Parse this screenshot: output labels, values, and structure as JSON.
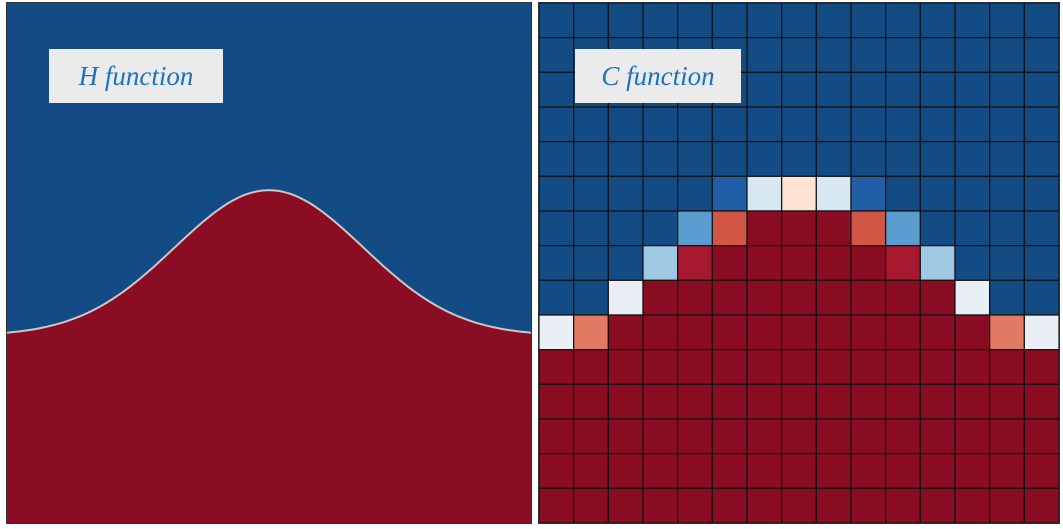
{
  "panels": {
    "h": {
      "label": "H function"
    },
    "c": {
      "label": "C function"
    }
  },
  "colors": {
    "blue": "#134b85",
    "red": "#8b0d23",
    "interface": "#c8c8c8",
    "grid_line": "#111111",
    "label_bg": "#ebebeb",
    "label_text": "#1a72c0"
  },
  "h_function": {
    "type": "gaussian_interface",
    "baseline_fraction_from_bottom": 0.36,
    "peak_fraction_from_bottom": 0.64,
    "sigma_fraction": 0.18
  },
  "c_function": {
    "rows": 15,
    "cols": 15,
    "cell_colors_top_to_bottom": [
      [
        "#134b85",
        "#134b85",
        "#134b85",
        "#134b85",
        "#134b85",
        "#134b85",
        "#134b85",
        "#134b85",
        "#134b85",
        "#134b85",
        "#134b85",
        "#134b85",
        "#134b85",
        "#134b85",
        "#134b85"
      ],
      [
        "#134b85",
        "#134b85",
        "#134b85",
        "#134b85",
        "#134b85",
        "#134b85",
        "#134b85",
        "#134b85",
        "#134b85",
        "#134b85",
        "#134b85",
        "#134b85",
        "#134b85",
        "#134b85",
        "#134b85"
      ],
      [
        "#134b85",
        "#134b85",
        "#134b85",
        "#134b85",
        "#134b85",
        "#134b85",
        "#134b85",
        "#134b85",
        "#134b85",
        "#134b85",
        "#134b85",
        "#134b85",
        "#134b85",
        "#134b85",
        "#134b85"
      ],
      [
        "#134b85",
        "#134b85",
        "#134b85",
        "#134b85",
        "#134b85",
        "#134b85",
        "#134b85",
        "#134b85",
        "#134b85",
        "#134b85",
        "#134b85",
        "#134b85",
        "#134b85",
        "#134b85",
        "#134b85"
      ],
      [
        "#134b85",
        "#134b85",
        "#134b85",
        "#134b85",
        "#134b85",
        "#134b85",
        "#134b85",
        "#134b85",
        "#134b85",
        "#134b85",
        "#134b85",
        "#134b85",
        "#134b85",
        "#134b85",
        "#134b85"
      ],
      [
        "#134b85",
        "#134b85",
        "#134b85",
        "#134b85",
        "#134b85",
        "#205fa6",
        "#d7e8f2",
        "#fde3d3",
        "#d7e8f2",
        "#205fa6",
        "#134b85",
        "#134b85",
        "#134b85",
        "#134b85",
        "#134b85"
      ],
      [
        "#134b85",
        "#134b85",
        "#134b85",
        "#134b85",
        "#5a9ecf",
        "#d25645",
        "#8b0d23",
        "#8b0d23",
        "#8b0d23",
        "#d25645",
        "#5a9ecf",
        "#134b85",
        "#134b85",
        "#134b85",
        "#134b85"
      ],
      [
        "#134b85",
        "#134b85",
        "#134b85",
        "#9fc9e3",
        "#a8182e",
        "#8b0d23",
        "#8b0d23",
        "#8b0d23",
        "#8b0d23",
        "#8b0d23",
        "#a8182e",
        "#9fc9e3",
        "#134b85",
        "#134b85",
        "#134b85"
      ],
      [
        "#134b85",
        "#134b85",
        "#e9eff4",
        "#8b0d23",
        "#8b0d23",
        "#8b0d23",
        "#8b0d23",
        "#8b0d23",
        "#8b0d23",
        "#8b0d23",
        "#8b0d23",
        "#8b0d23",
        "#e9eff4",
        "#134b85",
        "#134b85"
      ],
      [
        "#e9eff4",
        "#e07a62",
        "#8b0d23",
        "#8b0d23",
        "#8b0d23",
        "#8b0d23",
        "#8b0d23",
        "#8b0d23",
        "#8b0d23",
        "#8b0d23",
        "#8b0d23",
        "#8b0d23",
        "#8b0d23",
        "#e07a62",
        "#e9eff4"
      ],
      [
        "#8b0d23",
        "#8b0d23",
        "#8b0d23",
        "#8b0d23",
        "#8b0d23",
        "#8b0d23",
        "#8b0d23",
        "#8b0d23",
        "#8b0d23",
        "#8b0d23",
        "#8b0d23",
        "#8b0d23",
        "#8b0d23",
        "#8b0d23",
        "#8b0d23"
      ],
      [
        "#8b0d23",
        "#8b0d23",
        "#8b0d23",
        "#8b0d23",
        "#8b0d23",
        "#8b0d23",
        "#8b0d23",
        "#8b0d23",
        "#8b0d23",
        "#8b0d23",
        "#8b0d23",
        "#8b0d23",
        "#8b0d23",
        "#8b0d23",
        "#8b0d23"
      ],
      [
        "#8b0d23",
        "#8b0d23",
        "#8b0d23",
        "#8b0d23",
        "#8b0d23",
        "#8b0d23",
        "#8b0d23",
        "#8b0d23",
        "#8b0d23",
        "#8b0d23",
        "#8b0d23",
        "#8b0d23",
        "#8b0d23",
        "#8b0d23",
        "#8b0d23"
      ],
      [
        "#8b0d23",
        "#8b0d23",
        "#8b0d23",
        "#8b0d23",
        "#8b0d23",
        "#8b0d23",
        "#8b0d23",
        "#8b0d23",
        "#8b0d23",
        "#8b0d23",
        "#8b0d23",
        "#8b0d23",
        "#8b0d23",
        "#8b0d23",
        "#8b0d23"
      ],
      [
        "#8b0d23",
        "#8b0d23",
        "#8b0d23",
        "#8b0d23",
        "#8b0d23",
        "#8b0d23",
        "#8b0d23",
        "#8b0d23",
        "#8b0d23",
        "#8b0d23",
        "#8b0d23",
        "#8b0d23",
        "#8b0d23",
        "#8b0d23",
        "#8b0d23"
      ]
    ]
  }
}
